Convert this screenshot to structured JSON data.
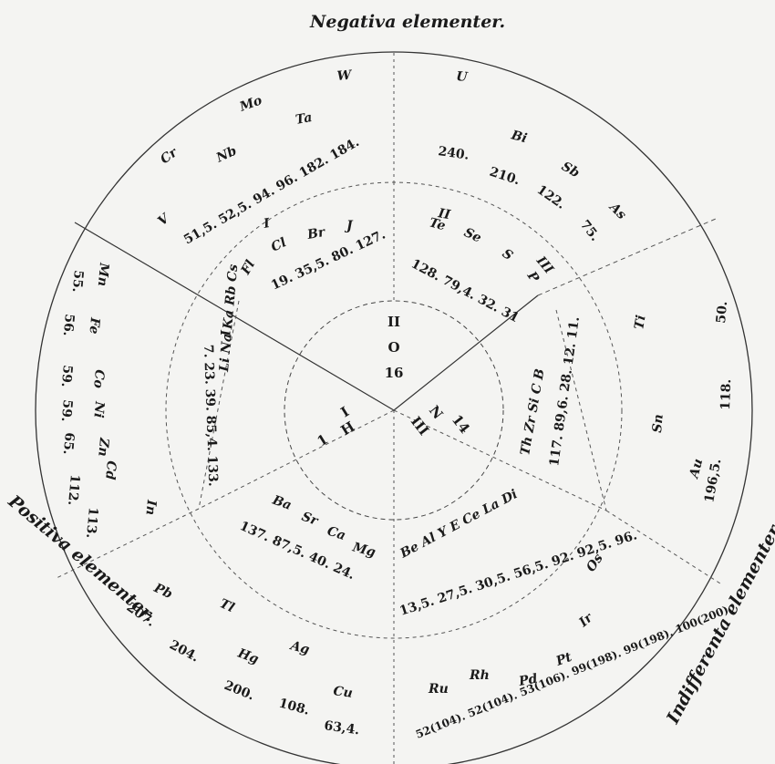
{
  "labels": {
    "negative": "Negativa elementer.",
    "positive": "Positiva elementer.",
    "indifferent": "Indifferenta elementer."
  },
  "center": {
    "valence_top": "II",
    "symbol_top": "O",
    "weight_top": "16",
    "valence_left": "I",
    "symbol_left": "H",
    "weight_left": "1",
    "valence_right": "III",
    "symbol_right": "N",
    "weight_right": "14"
  },
  "negative_outer": {
    "symbols_left": [
      "V",
      "Cr",
      "Mo",
      "Nb",
      "Ta",
      "W"
    ],
    "weights_left": "51,5. 52,5. 94. 96. 182. 184.",
    "symbols_right": [
      "U",
      "Bi",
      "Sb",
      "As"
    ],
    "weights_right": [
      "240.",
      "210.",
      "122.",
      "75."
    ]
  },
  "negative_inner": {
    "valence_I": "I",
    "symbols_I": [
      "Fl",
      "Cl",
      "Br",
      "J"
    ],
    "weights_I": "19. 35,5. 80. 127.",
    "valence_II": "II",
    "symbols_II": [
      "Te",
      "Se",
      "S"
    ],
    "valence_III": "III",
    "symbols_III": [
      "P"
    ],
    "weights_II_III": "128. 79,4. 32. 31"
  },
  "indifferent_inner": {
    "symbols": "Th Zr Si C B",
    "weights": "117. 89,6. 28. 12. 11."
  },
  "indifferent_outer": {
    "symbols": [
      "Ti",
      "Sn",
      "Au"
    ],
    "weights": [
      "50.",
      "118.",
      "196,5."
    ]
  },
  "indifferent_middle": {
    "symbols": "Be Al Y E Ce La Di",
    "weights": "13,5. 27,5. 30,5. 56,5. 92. 92,5. 96."
  },
  "indifferent_lower": {
    "symbols": [
      "Ru",
      "Rh",
      "Pd",
      "Pt",
      "Ir",
      "Os"
    ],
    "weights": "52(104). 52(104). 53(106). 99(198). 99(198). 100(200)."
  },
  "positive_inner": {
    "valence": "I",
    "symbols": "Li Na Ka Rb Cs",
    "weights": "7. 23. 39. 85,4. 133."
  },
  "positive_outer": {
    "symbols": [
      "Mn",
      "Fe",
      "Co",
      "Ni",
      "Zn",
      "Cd",
      "In"
    ],
    "weights": [
      "55.",
      "56.",
      "59.",
      "59.",
      "65.",
      "112.",
      "113."
    ]
  },
  "positive_middle": {
    "symbols": [
      "Ba",
      "Sr",
      "Ca",
      "Mg"
    ],
    "weights": "137. 87,5. 40. 24."
  },
  "positive_lower": {
    "symbols": [
      "Pb",
      "Tl",
      "Hg",
      "Ag",
      "Cu"
    ],
    "weights": [
      "207.",
      "204.",
      "200.",
      "108.",
      "63,4."
    ]
  }
}
